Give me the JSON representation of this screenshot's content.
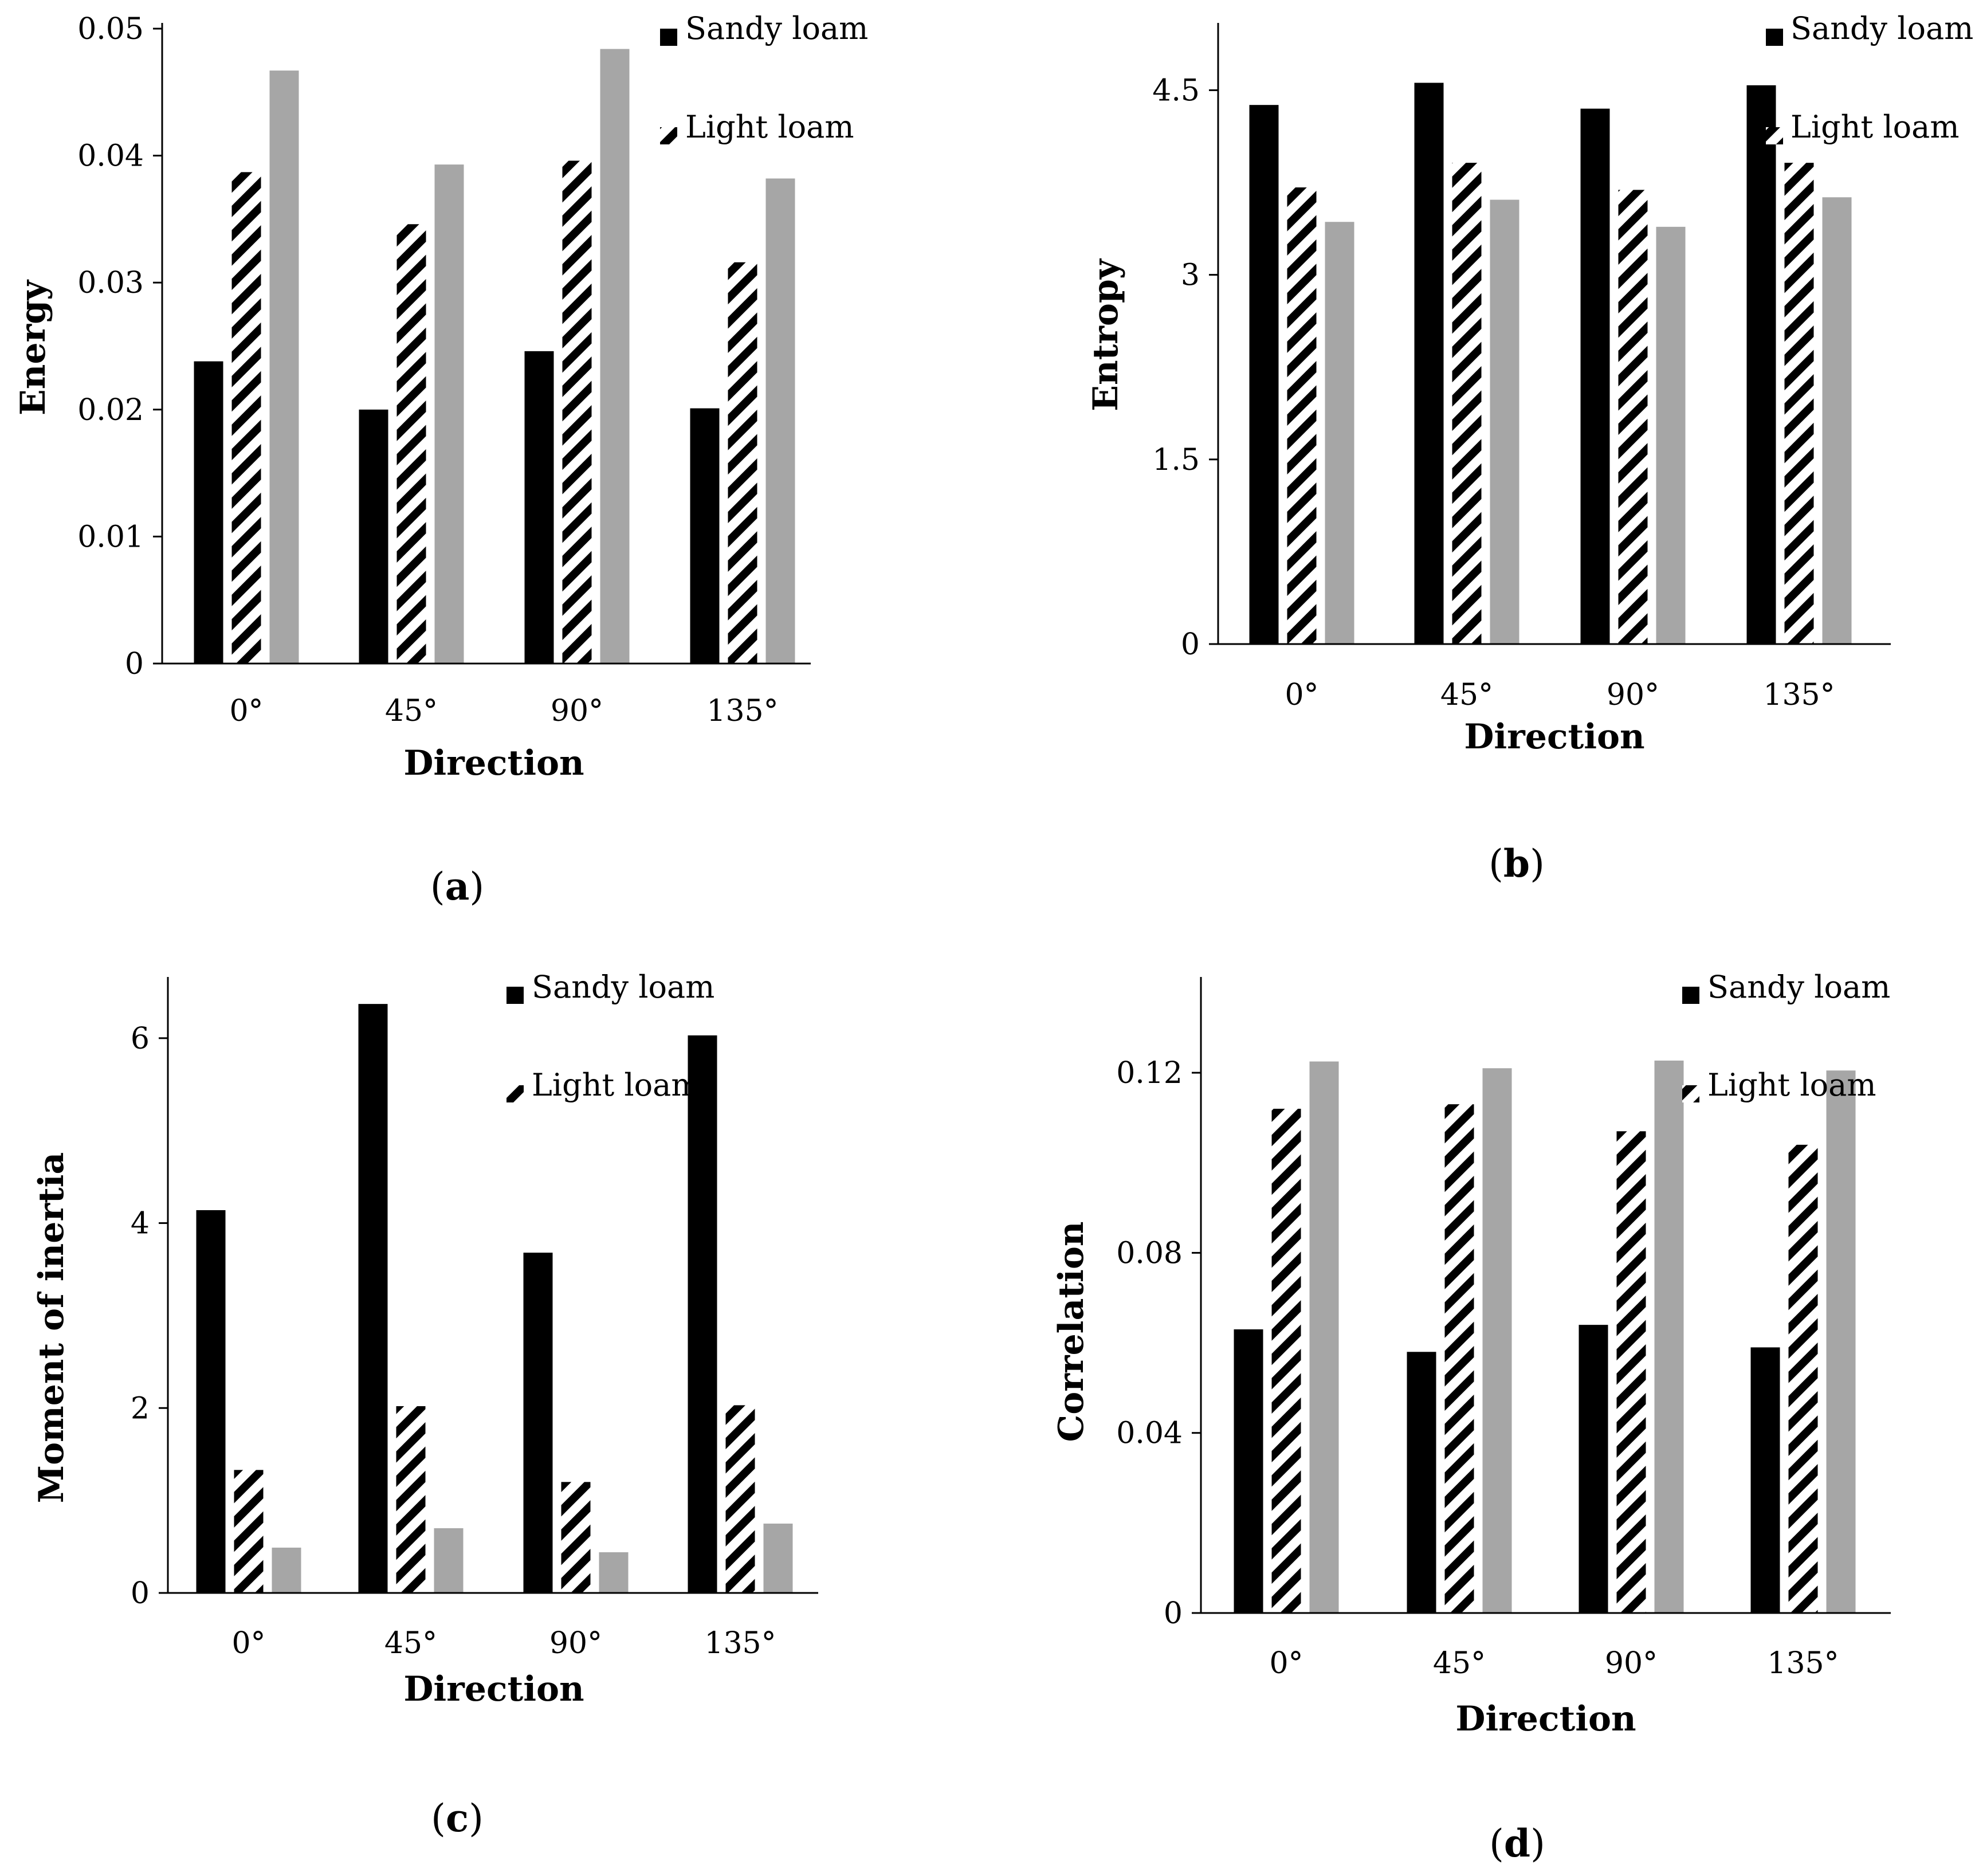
{
  "figure": {
    "series_colors": {
      "sandy_loam": "#000000",
      "light_loam": "hatch",
      "third": "#a6a6a6"
    }
  },
  "chart_data": [
    {
      "id": "a",
      "type": "bar",
      "panel_label": "a",
      "title": "",
      "xlabel": "Direction",
      "ylabel": "Energy",
      "categories": [
        "0°",
        "45°",
        "90°",
        "135°"
      ],
      "ylim": [
        0,
        0.05
      ],
      "yticks": [
        0,
        0.01,
        0.02,
        0.03,
        0.04,
        0.05
      ],
      "ytick_labels": [
        "0",
        "0.01",
        "0.02",
        "0.03",
        "0.04",
        "0.05"
      ],
      "legend": [
        "Sandy loam",
        "Light loam"
      ],
      "legend_position": "top-right",
      "series": [
        {
          "name": "Sandy loam",
          "pattern": "solid-black",
          "values": [
            0.0238,
            0.02,
            0.0246,
            0.0201
          ]
        },
        {
          "name": "Light loam",
          "pattern": "hatch",
          "values": [
            0.0387,
            0.0346,
            0.0396,
            0.0316
          ]
        },
        {
          "name": "",
          "pattern": "solid-gray",
          "values": [
            0.0467,
            0.0393,
            0.0484,
            0.0382
          ]
        }
      ]
    },
    {
      "id": "b",
      "type": "bar",
      "panel_label": "b",
      "title": "",
      "xlabel": "Direction",
      "ylabel": "Entropy",
      "categories": [
        "0°",
        "45°",
        "90°",
        "135°"
      ],
      "ylim": [
        0,
        5
      ],
      "yticks": [
        0,
        1.5,
        3,
        4.5
      ],
      "ytick_labels": [
        "0",
        "1.5",
        "3",
        "4.5"
      ],
      "legend": [
        "Sandy loam",
        "Light loam"
      ],
      "legend_position": "top-right",
      "series": [
        {
          "name": "Sandy loam",
          "pattern": "solid-black",
          "values": [
            4.38,
            4.56,
            4.35,
            4.54
          ]
        },
        {
          "name": "Light loam",
          "pattern": "hatch",
          "values": [
            3.71,
            3.91,
            3.69,
            3.91
          ]
        },
        {
          "name": "",
          "pattern": "solid-gray",
          "values": [
            3.43,
            3.61,
            3.39,
            3.63
          ]
        }
      ]
    },
    {
      "id": "c",
      "type": "bar",
      "panel_label": "c",
      "title": "",
      "xlabel": "Direction",
      "ylabel": "Moment of inertia",
      "categories": [
        "0°",
        "45°",
        "90°",
        "135°"
      ],
      "ylim": [
        0,
        6.6
      ],
      "yticks": [
        0,
        2,
        4,
        6
      ],
      "ytick_labels": [
        "0",
        "2",
        "4",
        "6"
      ],
      "legend": [
        "Sandy loam",
        "Light loam"
      ],
      "legend_position": "top-right",
      "series": [
        {
          "name": "Sandy loam",
          "pattern": "solid-black",
          "values": [
            4.14,
            6.37,
            3.68,
            6.03
          ]
        },
        {
          "name": "Light loam",
          "pattern": "hatch",
          "values": [
            1.33,
            2.02,
            1.2,
            2.03
          ]
        },
        {
          "name": "",
          "pattern": "solid-gray",
          "values": [
            0.49,
            0.7,
            0.44,
            0.75
          ]
        }
      ]
    },
    {
      "id": "d",
      "type": "bar",
      "panel_label": "d",
      "title": "",
      "xlabel": "Direction",
      "ylabel": "Correlation",
      "categories": [
        "0°",
        "45°",
        "90°",
        "135°"
      ],
      "ylim": [
        0,
        0.14
      ],
      "yticks": [
        0,
        0.04,
        0.08,
        0.12
      ],
      "ytick_labels": [
        "0",
        "0.04",
        "0.08",
        "0.12"
      ],
      "legend": [
        "Sandy loam",
        "Light loam"
      ],
      "legend_position": "top-right",
      "series": [
        {
          "name": "Sandy loam",
          "pattern": "solid-black",
          "values": [
            0.063,
            0.058,
            0.064,
            0.059
          ]
        },
        {
          "name": "Light loam",
          "pattern": "hatch",
          "values": [
            0.112,
            0.113,
            0.107,
            0.104
          ]
        },
        {
          "name": "",
          "pattern": "solid-gray",
          "values": [
            0.1225,
            0.121,
            0.1227,
            0.1205
          ]
        }
      ]
    }
  ]
}
